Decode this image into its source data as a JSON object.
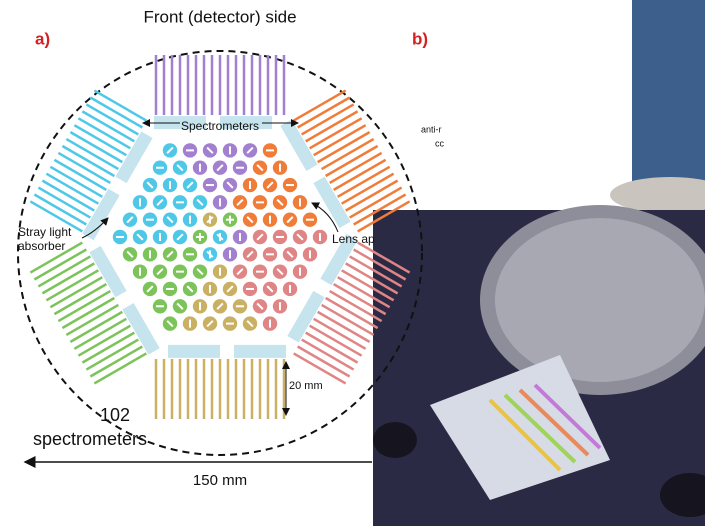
{
  "panel_a": {
    "label": "a)",
    "title": "Front (detector) side",
    "spectrometers_label": "Spectrometers",
    "stray_light": [
      "Stray light",
      "absorber"
    ],
    "lens_label": "Lens ap",
    "dimension_height": "20 mm",
    "count_label": [
      "102",
      "spectrometers"
    ],
    "dimension_width": "150 mm"
  },
  "panel_b": {
    "label": "b)",
    "text_lines": [
      "anti-r",
      "cc"
    ]
  }
}
